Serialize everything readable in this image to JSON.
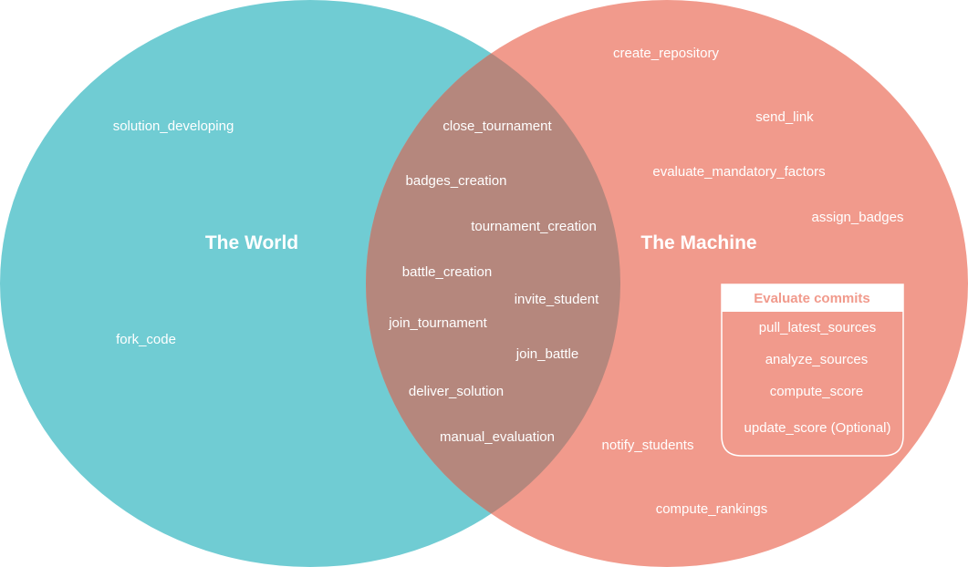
{
  "colors": {
    "world_circle": "#70CCD3",
    "machine_circle": "#F19A8C",
    "overlap": "#B5877D",
    "box_title_text": "#F19A8C",
    "box_title_bg": "#ffffff",
    "box_border": "#ffffff",
    "text": "#ffffff"
  },
  "sets": {
    "world": {
      "title": "The World",
      "items": [
        "solution_developing",
        "fork_code"
      ]
    },
    "machine": {
      "title": "The Machine",
      "items": [
        "create_repository",
        "send_link",
        "evaluate_mandatory_factors",
        "assign_badges",
        "notify_students",
        "compute_rankings"
      ]
    },
    "shared": {
      "items": [
        "close_tournament",
        "badges_creation",
        "tournament_creation",
        "battle_creation",
        "invite_student",
        "join_tournament",
        "join_battle",
        "deliver_solution",
        "manual_evaluation"
      ]
    }
  },
  "evaluate_commits": {
    "title": "Evaluate commits",
    "items": [
      "pull_latest_sources",
      "analyze_sources",
      "compute_score",
      "update_score (Optional)"
    ]
  }
}
